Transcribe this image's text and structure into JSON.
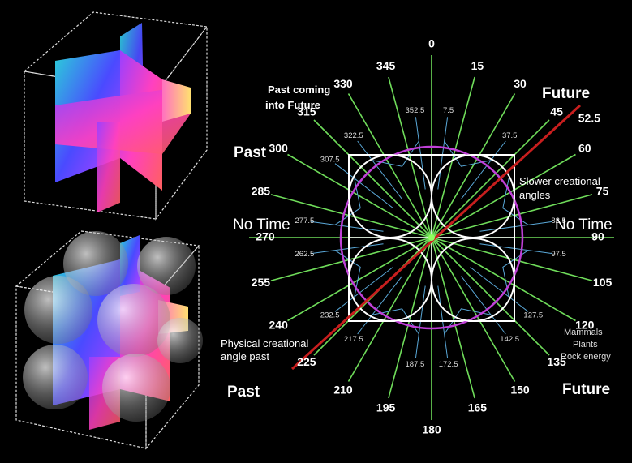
{
  "main_angles": [
    "0",
    "15",
    "30",
    "45",
    "60",
    "75",
    "90",
    "105",
    "120",
    "135",
    "150",
    "165",
    "180",
    "195",
    "210",
    "225",
    "240",
    "255",
    "270",
    "285",
    "300",
    "315",
    "330",
    "345"
  ],
  "special_angle": "52.5",
  "half_angles": [
    "352.5",
    "7.5",
    "37.5",
    "322.5",
    "307.5",
    "277.5",
    "82.5",
    "262.5",
    "97.5",
    "232.5",
    "127.5",
    "217.5",
    "142.5",
    "187.5",
    "172.5"
  ],
  "labels": {
    "past_top": "Past",
    "future_top": "Future",
    "past_bottom": "Past",
    "future_bottom": "Future",
    "no_time_left": "No Time",
    "no_time_right": "No Time",
    "past_coming_line1": "Past coming",
    "past_coming_line2": "into Future",
    "slower_line1": "Slower creational",
    "slower_line2": "angles",
    "physical_line1": "Physical creational",
    "physical_line2": "angle past",
    "mammals": "Mammals",
    "plants": "Plants",
    "rock": "Rock energy"
  },
  "colors": {
    "rays": "#6fdc5a",
    "blue_rays": "#5aa8d8",
    "red_axis": "#c81e1e",
    "circle": "#c040d8",
    "square": "#ffffff"
  }
}
